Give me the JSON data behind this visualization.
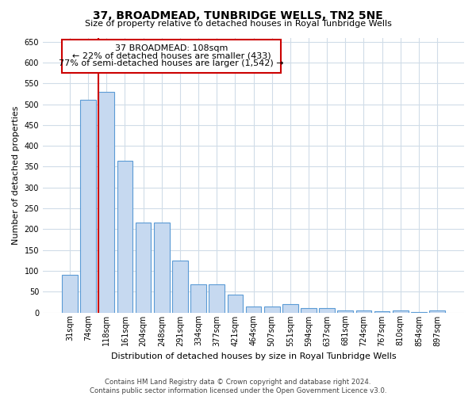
{
  "title": "37, BROADMEAD, TUNBRIDGE WELLS, TN2 5NE",
  "subtitle": "Size of property relative to detached houses in Royal Tunbridge Wells",
  "xlabel": "Distribution of detached houses by size in Royal Tunbridge Wells",
  "ylabel": "Number of detached properties",
  "footnote": "Contains HM Land Registry data © Crown copyright and database right 2024.\nContains public sector information licensed under the Open Government Licence v3.0.",
  "categories": [
    "31sqm",
    "74sqm",
    "118sqm",
    "161sqm",
    "204sqm",
    "248sqm",
    "291sqm",
    "334sqm",
    "377sqm",
    "421sqm",
    "464sqm",
    "507sqm",
    "551sqm",
    "594sqm",
    "637sqm",
    "681sqm",
    "724sqm",
    "767sqm",
    "810sqm",
    "854sqm",
    "897sqm"
  ],
  "bar_values": [
    90,
    510,
    530,
    365,
    215,
    215,
    125,
    68,
    68,
    42,
    15,
    15,
    20,
    10,
    10,
    5,
    5,
    2,
    5,
    1,
    5
  ],
  "bar_color": "#c6d9f0",
  "bar_edge_color": "#5b9bd5",
  "property_line_index": 2,
  "property_line_label": "37 BROADMEAD: 108sqm",
  "annotation_line1": "← 22% of detached houses are smaller (433)",
  "annotation_line2": "77% of semi-detached houses are larger (1,542) →",
  "annotation_box_color": "#cc0000",
  "ylim": [
    0,
    660
  ],
  "yticks": [
    0,
    50,
    100,
    150,
    200,
    250,
    300,
    350,
    400,
    450,
    500,
    550,
    600,
    650
  ],
  "bg_color": "#ffffff",
  "grid_color": "#d0dce8",
  "title_fontsize": 10,
  "subtitle_fontsize": 8,
  "axis_label_fontsize": 8,
  "tick_fontsize": 7,
  "annot_fontsize": 8
}
